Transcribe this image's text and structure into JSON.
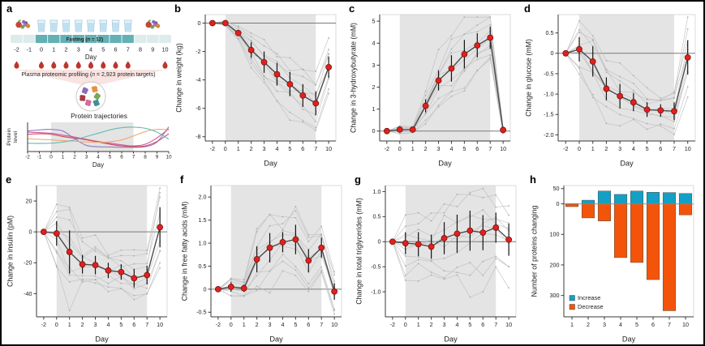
{
  "colors": {
    "mean_point": "#e2201c",
    "mean_point_stroke": "#791111",
    "mean_line": "#4a4a4a",
    "error_bar": "#141414",
    "individual_line": "#bdbdbd",
    "individual_marker": "#a8a8a8",
    "fasting_shade": "#e4e4e4",
    "zero_line": "#7a7a7a",
    "axis": "#3a3a3a",
    "frame": "#d2d2d2",
    "increase": "#14a0c4",
    "decrease": "#f4540a",
    "timeline_light": "#dcecea",
    "timeline_dark": "#63b1b4",
    "cup_fill": "#e8f4fb",
    "cup_water": "#bfe0f0",
    "cup_stroke": "#9dc6da",
    "blood_drop": "#bd352c",
    "funnel": "#f9e4e2",
    "circle_stroke": "#c9c9c9"
  },
  "panel_a": {
    "letter": "a",
    "days": [
      "-2",
      "-1",
      "0",
      "1",
      "2",
      "3",
      "4",
      "5",
      "6",
      "7",
      "8",
      "9",
      "10"
    ],
    "day_label": "Day",
    "fasting_label": {
      "pre": "Fasting (",
      "n": "n",
      "post": " = 12)"
    },
    "food_days": [
      "-2",
      "-1",
      "8",
      "9",
      "10"
    ],
    "water_days": [
      "0",
      "1",
      "2",
      "3",
      "4",
      "5",
      "6",
      "7"
    ],
    "blood_sample_days": [
      "-2",
      "0",
      "1",
      "2",
      "3",
      "4",
      "5",
      "6",
      "7",
      "10"
    ],
    "profiling_label": {
      "pre": "Plasma proteomic profiling (",
      "n": "n",
      "post": " = 2,923 protein targets)"
    },
    "trajectories": {
      "title": "Protein trajectories",
      "ylabel": [
        "Protein",
        "level"
      ],
      "xlabel": "Day",
      "xticks": [
        "-2",
        "-1",
        "0",
        "1",
        "2",
        "3",
        "4",
        "5",
        "6",
        "7",
        "8",
        "9",
        "10"
      ],
      "fasting_shade_days": [
        "0",
        "7"
      ],
      "curves": [
        {
          "name": "purple",
          "color": "#8f77c0",
          "points": [
            [
              -2,
              0.7
            ],
            [
              -1,
              0.74
            ],
            [
              0,
              0.76
            ],
            [
              1,
              0.7
            ],
            [
              2,
              0.42
            ],
            [
              3,
              0.18
            ],
            [
              4,
              0.13
            ],
            [
              5,
              0.12
            ],
            [
              6,
              0.11
            ],
            [
              7,
              0.11
            ],
            [
              8,
              0.13
            ],
            [
              9,
              0.3
            ],
            [
              10,
              0.85
            ]
          ]
        },
        {
          "name": "magenta",
          "color": "#d44f93",
          "points": [
            [
              -2,
              0.66
            ],
            [
              -1,
              0.64
            ],
            [
              0,
              0.62
            ],
            [
              1,
              0.55
            ],
            [
              2,
              0.48
            ],
            [
              3,
              0.4
            ],
            [
              4,
              0.32
            ],
            [
              5,
              0.26
            ],
            [
              6,
              0.2
            ],
            [
              7,
              0.16
            ],
            [
              8,
              0.22
            ],
            [
              9,
              0.45
            ],
            [
              10,
              0.78
            ]
          ]
        },
        {
          "name": "crimson",
          "color": "#cb4a5e",
          "points": [
            [
              -2,
              0.58
            ],
            [
              -1,
              0.6
            ],
            [
              0,
              0.58
            ],
            [
              1,
              0.5
            ],
            [
              2,
              0.44
            ],
            [
              3,
              0.38
            ],
            [
              4,
              0.3
            ],
            [
              5,
              0.22
            ],
            [
              6,
              0.16
            ],
            [
              7,
              0.13
            ],
            [
              8,
              0.16
            ],
            [
              9,
              0.32
            ],
            [
              10,
              0.6
            ]
          ]
        },
        {
          "name": "orange",
          "color": "#eca96f",
          "points": [
            [
              -2,
              0.42
            ],
            [
              -1,
              0.4
            ],
            [
              0,
              0.38
            ],
            [
              1,
              0.35
            ],
            [
              2,
              0.33
            ],
            [
              3,
              0.3
            ],
            [
              4,
              0.29
            ],
            [
              5,
              0.31
            ],
            [
              6,
              0.38
            ],
            [
              7,
              0.52
            ],
            [
              8,
              0.68
            ],
            [
              9,
              0.76
            ],
            [
              10,
              0.74
            ]
          ]
        },
        {
          "name": "teal",
          "color": "#62b8b2",
          "points": [
            [
              -2,
              0.26
            ],
            [
              -1,
              0.25
            ],
            [
              0,
              0.26
            ],
            [
              1,
              0.3
            ],
            [
              2,
              0.38
            ],
            [
              3,
              0.5
            ],
            [
              4,
              0.62
            ],
            [
              5,
              0.74
            ],
            [
              6,
              0.82
            ],
            [
              7,
              0.84
            ],
            [
              8,
              0.8
            ],
            [
              9,
              0.66
            ],
            [
              10,
              0.4
            ]
          ]
        }
      ]
    },
    "protein_blob_colors": [
      "#8e6bb5",
      "#e8913f",
      "#a83a44",
      "#76a95c",
      "#cf6f9e",
      "#3f8f96"
    ]
  },
  "chart_data": [
    {
      "panel": "b",
      "type": "line",
      "ylabel": "Change in weight (kg)",
      "xlabel": "Day",
      "x": [
        "-2",
        "0",
        "1",
        "2",
        "3",
        "4",
        "5",
        "6",
        "7",
        "10"
      ],
      "mean": [
        0,
        0,
        -0.7,
        -1.9,
        -2.75,
        -3.6,
        -4.3,
        -5.1,
        -5.65,
        -3.1
      ],
      "err": [
        0,
        0.07,
        0.2,
        0.55,
        0.75,
        0.8,
        0.85,
        0.8,
        0.85,
        0.75
      ],
      "ylim": [
        -8.3,
        0.6
      ],
      "yticks": [
        {
          "v": 0,
          "label": "0"
        },
        {
          "v": -2,
          "label": "-2"
        },
        {
          "v": -4,
          "label": "-4"
        },
        {
          "v": -6,
          "label": "-6"
        },
        {
          "v": -8,
          "label": "-8"
        }
      ],
      "shade_x": [
        1,
        8
      ],
      "zero_line": true,
      "n_individuals": 12,
      "seed": 11
    },
    {
      "panel": "c",
      "type": "line",
      "ylabel": "Change in 3-hydroxybutyrate (mM)",
      "xlabel": "Day",
      "x": [
        "-2",
        "0",
        "1",
        "2",
        "3",
        "4",
        "5",
        "6",
        "7",
        "10"
      ],
      "mean": [
        0,
        0.07,
        0.07,
        1.15,
        2.3,
        2.85,
        3.5,
        3.9,
        4.25,
        0.05
      ],
      "err": [
        0,
        0.07,
        0.05,
        0.3,
        0.45,
        0.6,
        0.65,
        0.55,
        0.5,
        0.05
      ],
      "ylim": [
        -0.45,
        5.3
      ],
      "yticks": [
        {
          "v": 0,
          "label": "0"
        },
        {
          "v": 1,
          "label": "1"
        },
        {
          "v": 2,
          "label": "2"
        },
        {
          "v": 3,
          "label": "3"
        },
        {
          "v": 4,
          "label": "4"
        },
        {
          "v": 5,
          "label": "5"
        }
      ],
      "shade_x": [
        1,
        8
      ],
      "zero_line": true,
      "n_individuals": 12,
      "seed": 22
    },
    {
      "panel": "d",
      "type": "line",
      "ylabel": "Change in glucose (mM)",
      "xlabel": "Day",
      "x": [
        "-2",
        "0",
        "1",
        "2",
        "3",
        "4",
        "5",
        "6",
        "7",
        "10"
      ],
      "mean": [
        0,
        0.1,
        -0.2,
        -0.87,
        -1.05,
        -1.2,
        -1.38,
        -1.4,
        -1.42,
        -0.1
      ],
      "err": [
        0,
        0.3,
        0.37,
        0.28,
        0.3,
        0.22,
        0.18,
        0.15,
        0.22,
        0.42
      ],
      "ylim": [
        -2.15,
        0.95
      ],
      "yticks": [
        {
          "v": 0.5,
          "label": "0.5"
        },
        {
          "v": 0,
          "label": "0"
        },
        {
          "v": -0.5,
          "label": "-0.5"
        },
        {
          "v": -1,
          "label": "-1.0"
        },
        {
          "v": -1.5,
          "label": "-1.5"
        },
        {
          "v": -2,
          "label": "-2.0"
        }
      ],
      "shade_x": [
        1,
        8
      ],
      "zero_line": true,
      "n_individuals": 12,
      "seed": 33
    },
    {
      "panel": "e",
      "type": "line",
      "ylabel": "Change in insulin (pM)",
      "xlabel": "Day",
      "x": [
        "-2",
        "0",
        "1",
        "2",
        "3",
        "4",
        "5",
        "6",
        "7",
        "10"
      ],
      "mean": [
        0,
        -1,
        -13,
        -21,
        -21.5,
        -25,
        -26,
        -30,
        -28,
        3
      ],
      "err": [
        0,
        8,
        14,
        6,
        6,
        5,
        5,
        6,
        6,
        13
      ],
      "ylim": [
        -55,
        30
      ],
      "yticks": [
        {
          "v": 20,
          "label": "20"
        },
        {
          "v": 0,
          "label": "0"
        },
        {
          "v": -20,
          "label": "-20"
        },
        {
          "v": -40,
          "label": "-40"
        }
      ],
      "shade_x": [
        1,
        8
      ],
      "zero_line": true,
      "n_individuals": 12,
      "seed": 44
    },
    {
      "panel": "f",
      "type": "line",
      "ylabel": "Change in free fatty acids (mM)",
      "xlabel": "Day",
      "x": [
        "-2",
        "0",
        "1",
        "2",
        "3",
        "4",
        "5",
        "6",
        "7",
        "10"
      ],
      "mean": [
        0,
        0.05,
        0.02,
        0.65,
        0.9,
        1.02,
        1.08,
        0.62,
        0.9,
        -0.05
      ],
      "err": [
        0.02,
        0.1,
        0.08,
        0.28,
        0.32,
        0.22,
        0.32,
        0.25,
        0.22,
        0.18
      ],
      "ylim": [
        -0.6,
        2.25
      ],
      "yticks": [
        {
          "v": 2,
          "label": "2.0"
        },
        {
          "v": 1.5,
          "label": "1.5"
        },
        {
          "v": 1,
          "label": "1.0"
        },
        {
          "v": 0.5,
          "label": "0.5"
        },
        {
          "v": 0,
          "label": "0"
        },
        {
          "v": -0.5,
          "label": "-0.5"
        }
      ],
      "shade_x": [
        1,
        8
      ],
      "zero_line": true,
      "n_individuals": 12,
      "seed": 55
    },
    {
      "panel": "g",
      "type": "line",
      "ylabel": "Change in total triglycerides (mM)",
      "xlabel": "Day",
      "x": [
        "-2",
        "0",
        "1",
        "2",
        "3",
        "4",
        "5",
        "6",
        "7",
        "10"
      ],
      "mean": [
        0,
        -0.03,
        -0.05,
        -0.1,
        0.07,
        0.16,
        0.22,
        0.18,
        0.28,
        0.04
      ],
      "err": [
        0.02,
        0.22,
        0.24,
        0.24,
        0.32,
        0.38,
        0.4,
        0.35,
        0.3,
        0.32
      ],
      "ylim": [
        -1.5,
        1.12
      ],
      "yticks": [
        {
          "v": 1,
          "label": "1.0"
        },
        {
          "v": 0.5,
          "label": "0.5"
        },
        {
          "v": 0,
          "label": "0"
        },
        {
          "v": -0.5,
          "label": "-0.5"
        },
        {
          "v": -1,
          "label": "-1.0"
        }
      ],
      "shade_x": [
        1,
        8
      ],
      "zero_line": true,
      "n_individuals": 12,
      "seed": 66
    },
    {
      "panel": "h",
      "type": "bar",
      "ylabel": "Number of proteins changing",
      "xlabel": "Day",
      "categories": [
        "1",
        "2",
        "3",
        "4",
        "5",
        "6",
        "7",
        "10"
      ],
      "increase": [
        1,
        12,
        42,
        31,
        42,
        38,
        37,
        34
      ],
      "decrease": [
        9,
        46,
        56,
        176,
        192,
        248,
        350,
        36
      ],
      "ylim": [
        -370,
        60
      ],
      "yticks": [
        {
          "v": 50,
          "label": "50"
        },
        {
          "v": 0,
          "label": "0"
        },
        {
          "v": -100,
          "label": "100"
        },
        {
          "v": -200,
          "label": "200"
        },
        {
          "v": -300,
          "label": "300"
        }
      ],
      "legend": [
        {
          "label": "Increase",
          "key": "increase"
        },
        {
          "label": "Decrease",
          "key": "decrease"
        }
      ],
      "legend_position": "bottom-left"
    }
  ]
}
